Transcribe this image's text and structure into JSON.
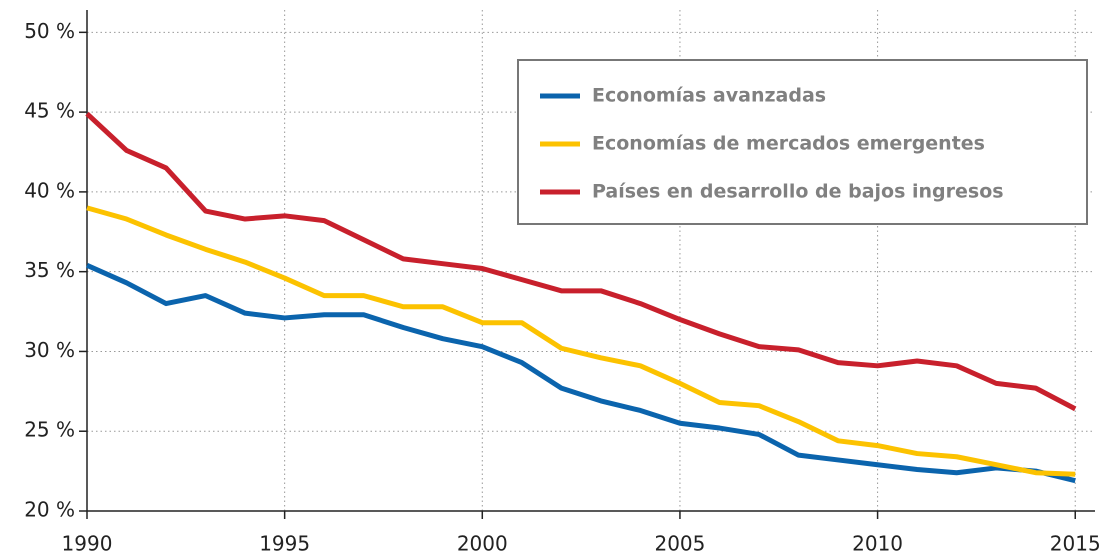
{
  "chart_data": {
    "type": "line",
    "x": [
      1990,
      1991,
      1992,
      1993,
      1994,
      1995,
      1996,
      1997,
      1998,
      1999,
      2000,
      2001,
      2002,
      2003,
      2004,
      2005,
      2006,
      2007,
      2008,
      2009,
      2010,
      2011,
      2012,
      2013,
      2014,
      2015
    ],
    "series": [
      {
        "name": "Economías avanzadas",
        "color": "#0b64ad",
        "values": [
          35.4,
          34.3,
          33.0,
          33.5,
          32.4,
          32.1,
          32.3,
          32.3,
          31.5,
          30.8,
          30.3,
          29.3,
          27.7,
          26.9,
          26.3,
          25.5,
          25.2,
          24.8,
          23.5,
          23.2,
          22.9,
          22.6,
          22.4,
          22.7,
          22.5,
          21.9
        ]
      },
      {
        "name": "Economías de mercados emergentes",
        "color": "#fcc200",
        "values": [
          39.0,
          38.3,
          37.3,
          36.4,
          35.6,
          34.6,
          33.5,
          33.5,
          32.8,
          32.8,
          31.8,
          31.8,
          30.2,
          29.6,
          29.1,
          28.0,
          26.8,
          26.6,
          25.6,
          24.4,
          24.1,
          23.6,
          23.4,
          22.9,
          22.4,
          22.3
        ]
      },
      {
        "name": "Países en desarrollo de bajos ingresos",
        "color": "#c8202c",
        "values": [
          44.9,
          42.6,
          41.5,
          38.8,
          38.3,
          38.5,
          38.2,
          37.0,
          35.8,
          35.5,
          35.2,
          34.5,
          33.8,
          33.8,
          33.0,
          32.0,
          31.1,
          30.3,
          30.1,
          29.3,
          29.1,
          29.4,
          29.1,
          28.0,
          27.7,
          26.4
        ]
      }
    ],
    "xlim": [
      1990,
      2015.5
    ],
    "xticks": [
      1990,
      1995,
      2000,
      2005,
      2010,
      2015
    ],
    "ylim": [
      20,
      51.4
    ],
    "yticks": [
      {
        "value": 20,
        "label": "20 %"
      },
      {
        "value": 25,
        "label": "25 %"
      },
      {
        "value": 30,
        "label": "30 %"
      },
      {
        "value": 35,
        "label": "35 %"
      },
      {
        "value": 40,
        "label": "40 %"
      },
      {
        "value": 45,
        "label": "45 %"
      },
      {
        "value": 50,
        "label": "50 %"
      }
    ],
    "grid": true,
    "legend": "upper right"
  }
}
